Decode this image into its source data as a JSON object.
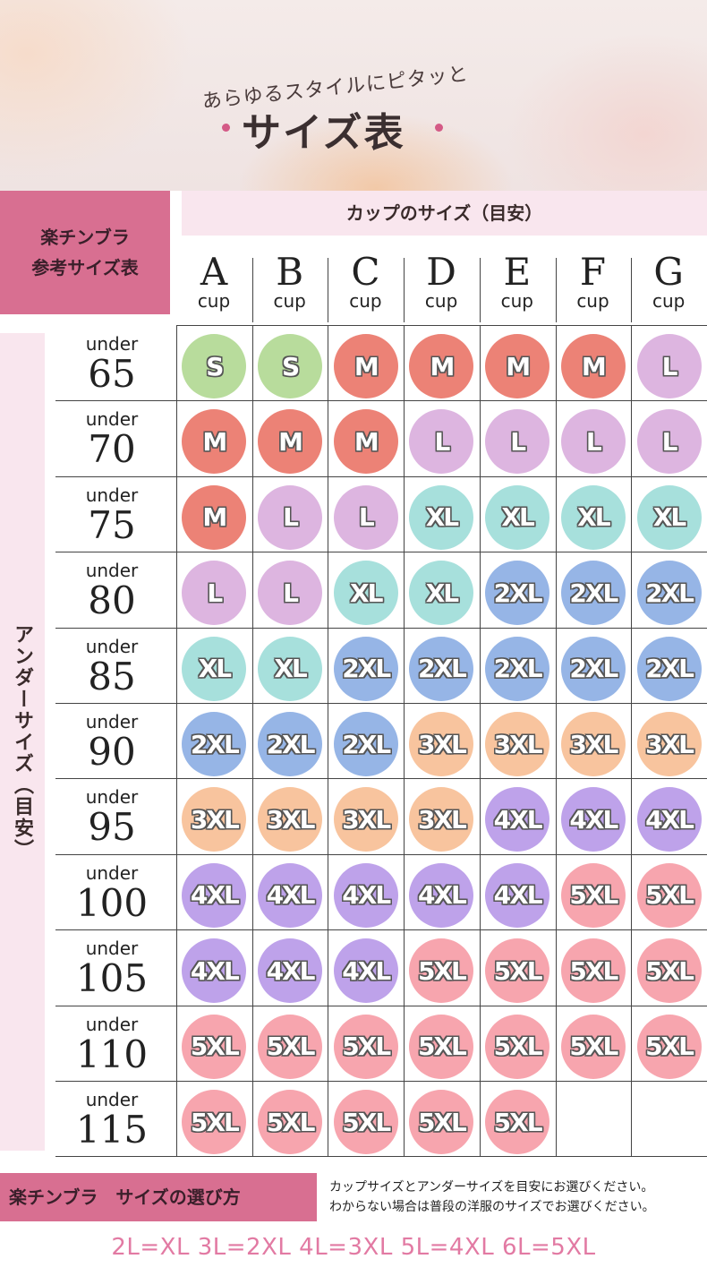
{
  "banner": {
    "subtitle": "あらゆるスタイルにピタッと",
    "title": "サイズ表"
  },
  "table_label": {
    "line1": "楽チンブラ",
    "line2": "参考サイズ表"
  },
  "cup_header": "カップのサイズ（目安）",
  "under_header": "アンダーサイズ（目安）",
  "cups": [
    {
      "letter": "A",
      "unit": "cup"
    },
    {
      "letter": "B",
      "unit": "cup"
    },
    {
      "letter": "C",
      "unit": "cup"
    },
    {
      "letter": "D",
      "unit": "cup"
    },
    {
      "letter": "E",
      "unit": "cup"
    },
    {
      "letter": "F",
      "unit": "cup"
    },
    {
      "letter": "G",
      "unit": "cup"
    }
  ],
  "rows": [
    {
      "prefix": "under",
      "value": "65",
      "sizes": [
        "S",
        "S",
        "M",
        "M",
        "M",
        "M",
        "L"
      ]
    },
    {
      "prefix": "under",
      "value": "70",
      "sizes": [
        "M",
        "M",
        "M",
        "L",
        "L",
        "L",
        "L"
      ]
    },
    {
      "prefix": "under",
      "value": "75",
      "sizes": [
        "M",
        "L",
        "L",
        "XL",
        "XL",
        "XL",
        "XL"
      ]
    },
    {
      "prefix": "under",
      "value": "80",
      "sizes": [
        "L",
        "L",
        "XL",
        "XL",
        "2XL",
        "2XL",
        "2XL"
      ]
    },
    {
      "prefix": "under",
      "value": "85",
      "sizes": [
        "XL",
        "XL",
        "2XL",
        "2XL",
        "2XL",
        "2XL",
        "2XL"
      ]
    },
    {
      "prefix": "under",
      "value": "90",
      "sizes": [
        "2XL",
        "2XL",
        "2XL",
        "3XL",
        "3XL",
        "3XL",
        "3XL"
      ]
    },
    {
      "prefix": "under",
      "value": "95",
      "sizes": [
        "3XL",
        "3XL",
        "3XL",
        "3XL",
        "4XL",
        "4XL",
        "4XL"
      ]
    },
    {
      "prefix": "under",
      "value": "100",
      "sizes": [
        "4XL",
        "4XL",
        "4XL",
        "4XL",
        "4XL",
        "5XL",
        "5XL"
      ]
    },
    {
      "prefix": "under",
      "value": "105",
      "sizes": [
        "4XL",
        "4XL",
        "4XL",
        "5XL",
        "5XL",
        "5XL",
        "5XL"
      ]
    },
    {
      "prefix": "under",
      "value": "110",
      "sizes": [
        "5XL",
        "5XL",
        "5XL",
        "5XL",
        "5XL",
        "5XL",
        "5XL"
      ]
    },
    {
      "prefix": "under",
      "value": "115",
      "sizes": [
        "5XL",
        "5XL",
        "5XL",
        "5XL",
        "5XL",
        "",
        ""
      ]
    }
  ],
  "size_colors": {
    "S": "#b8dc9c",
    "M": "#ec8276",
    "L": "#ddb5e0",
    "XL": "#a7e0dc",
    "2XL": "#96b5e6",
    "3XL": "#f8c49e",
    "4XL": "#bea2ea",
    "5XL": "#f7a5ae"
  },
  "footer": {
    "label": "楽チンブラ　サイズの選び方",
    "note1": "カップサイズとアンダーサイズを目安にお選びください。",
    "note2": "わからない場合は普段の洋服のサイズでお選びください。",
    "legend": "2L=XL 3L=2XL 4L=3XL 5L=4XL 6L=5XL"
  }
}
